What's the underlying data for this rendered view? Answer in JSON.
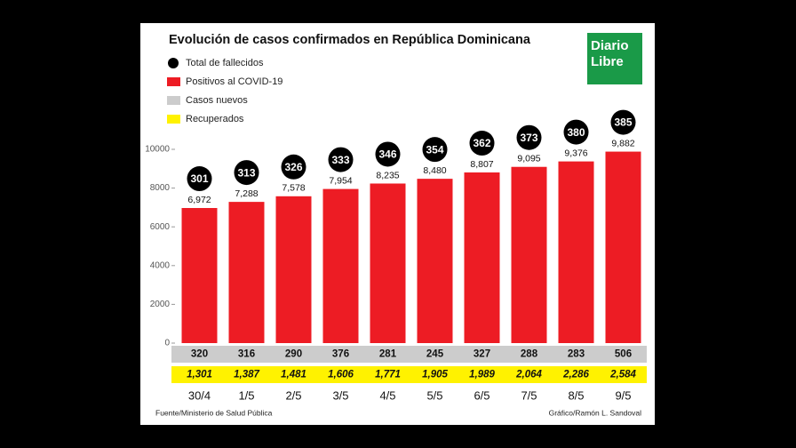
{
  "chart_data": {
    "type": "bar",
    "title": "Evolución de casos confirmados en República Dominicana",
    "logo": [
      "Diario",
      "Libre"
    ],
    "source": "Fuente/Ministerio de Salud Pública",
    "credit": "Gráfico/Ramón L. Sandoval",
    "categories": [
      "30/4",
      "1/5",
      "2/5",
      "3/5",
      "4/5",
      "5/5",
      "6/5",
      "7/5",
      "8/5",
      "9/5"
    ],
    "ylim": [
      0,
      10000
    ],
    "yticks": [
      0,
      2000,
      4000,
      6000,
      8000,
      10000
    ],
    "series": [
      {
        "name": "Total de fallecidos",
        "color": "#000000",
        "role": "circle",
        "values": [
          301,
          313,
          326,
          333,
          346,
          354,
          362,
          373,
          380,
          385
        ]
      },
      {
        "name": "Positivos al COVID-19",
        "color": "#ed1c24",
        "role": "bar",
        "values": [
          6972,
          7288,
          7578,
          7954,
          8235,
          8480,
          8807,
          9095,
          9376,
          9882
        ],
        "value_labels": [
          "6,972",
          "7,288",
          "7,578",
          "7,954",
          "8,235",
          "8,480",
          "8,807",
          "9,095",
          "9,376",
          "9,882"
        ]
      },
      {
        "name": "Casos nuevos",
        "color": "#cccccc",
        "role": "row",
        "values": [
          320,
          316,
          290,
          376,
          281,
          245,
          327,
          288,
          283,
          506
        ]
      },
      {
        "name": "Recuperados",
        "color": "#fff200",
        "role": "row",
        "values": [
          1301,
          1387,
          1481,
          1606,
          1771,
          1905,
          1989,
          2064,
          2286,
          2584
        ],
        "value_labels": [
          "1,301",
          "1,387",
          "1,481",
          "1,606",
          "1,771",
          "1,905",
          "1,989",
          "2,064",
          "2,286",
          "2,584"
        ]
      }
    ]
  }
}
